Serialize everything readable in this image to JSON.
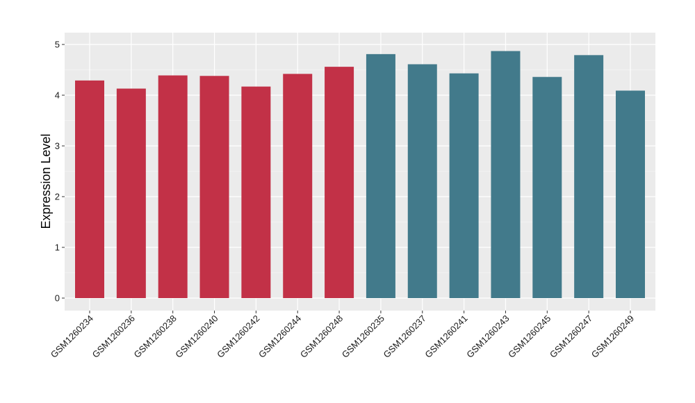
{
  "chart_data": {
    "type": "bar",
    "title": "",
    "xlabel": "",
    "ylabel": "Expression Level",
    "ylim": [
      0,
      5
    ],
    "yticks": [
      0,
      1,
      2,
      3,
      4,
      5
    ],
    "grid": true,
    "legend": "none",
    "background_color": "#EBEBEB",
    "grid_color": "#FFFFFF",
    "categories": [
      "GSM1260234",
      "GSM1260236",
      "GSM1260238",
      "GSM1260240",
      "GSM1260242",
      "GSM1260244",
      "GSM1260248",
      "GSM1260235",
      "GSM1260237",
      "GSM1260241",
      "GSM1260243",
      "GSM1260245",
      "GSM1260247",
      "GSM1260249"
    ],
    "values": [
      4.29,
      4.13,
      4.39,
      4.38,
      4.17,
      4.42,
      4.56,
      4.81,
      4.61,
      4.43,
      4.87,
      4.36,
      4.79,
      4.09
    ],
    "colors": [
      "#C23147",
      "#C23147",
      "#C23147",
      "#C23147",
      "#C23147",
      "#C23147",
      "#C23147",
      "#427A8B",
      "#427A8B",
      "#427A8B",
      "#427A8B",
      "#427A8B",
      "#427A8B",
      "#427A8B"
    ]
  }
}
